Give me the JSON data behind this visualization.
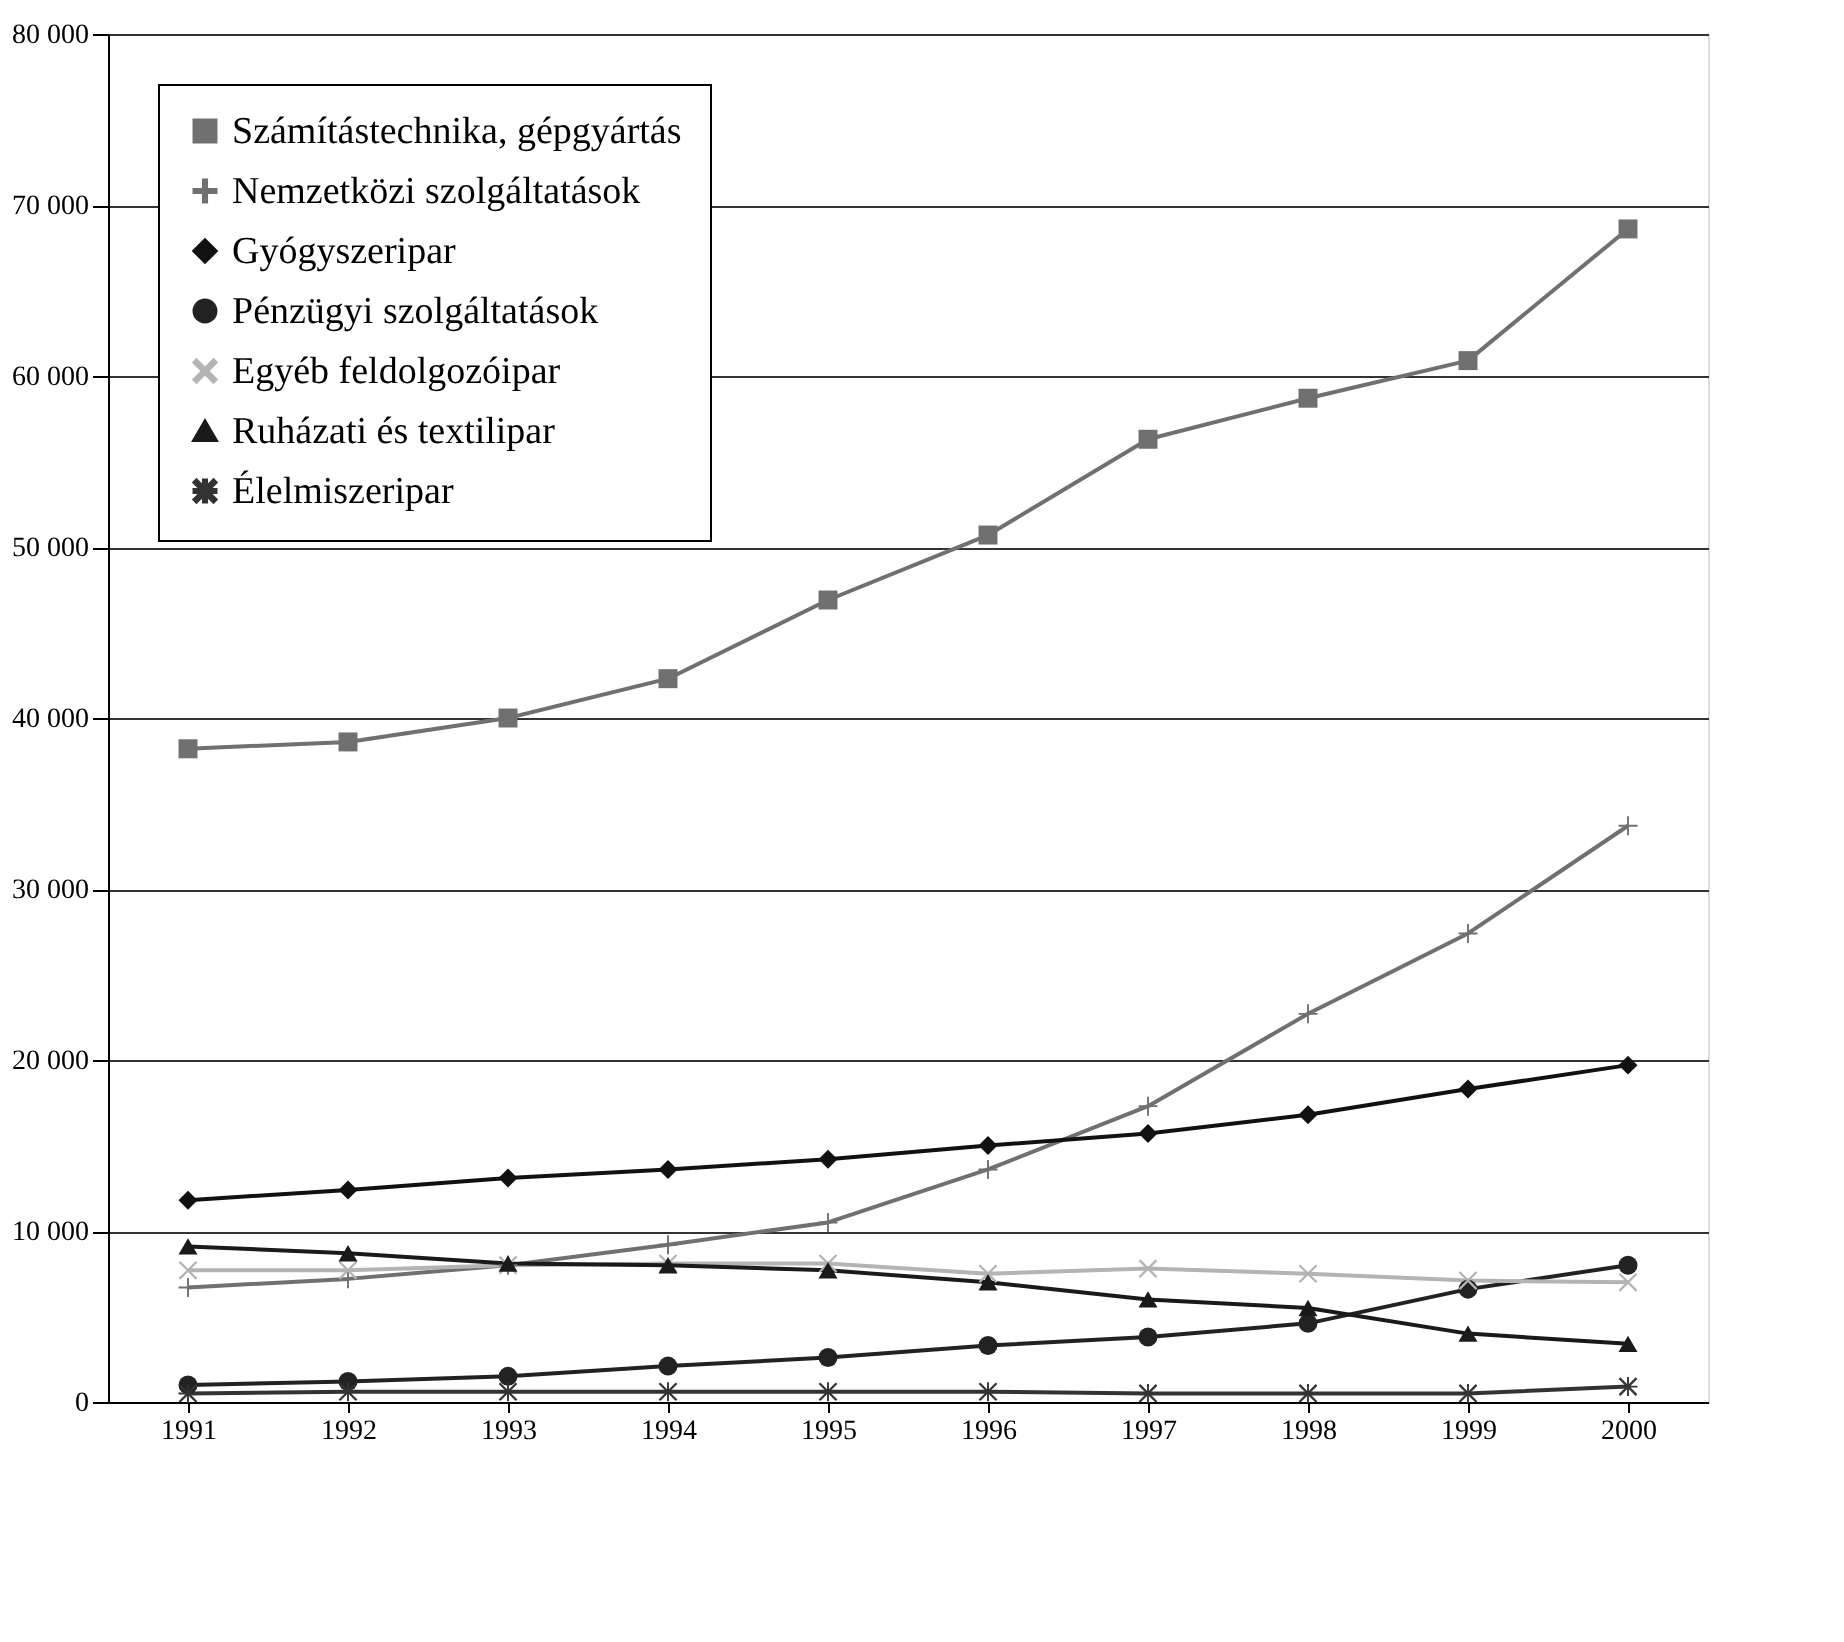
{
  "chart_data": {
    "type": "line",
    "categories": [
      "1991",
      "1992",
      "1993",
      "1994",
      "1995",
      "1996",
      "1997",
      "1998",
      "1999",
      "2000"
    ],
    "ylim": [
      0,
      80000
    ],
    "yticks": [
      0,
      10000,
      20000,
      30000,
      40000,
      50000,
      60000,
      70000,
      80000
    ],
    "grid": "y",
    "legend": "top left",
    "series": [
      {
        "name": "Számítástechnika, gépgyártás",
        "color": "#707070",
        "marker": "square",
        "values": [
          38200,
          38600,
          40000,
          42300,
          46900,
          50700,
          56300,
          58700,
          60900,
          68600
        ]
      },
      {
        "name": "Nemzetközi szolgáltatások",
        "color": "#707070",
        "marker": "plus",
        "values": [
          6700,
          7200,
          8000,
          9200,
          10500,
          13600,
          17300,
          22700,
          27400,
          33700
        ]
      },
      {
        "name": "Gyógyszeripar",
        "color": "#111111",
        "marker": "diamond",
        "values": [
          11800,
          12400,
          13100,
          13600,
          14200,
          15000,
          15700,
          16800,
          18300,
          19700
        ]
      },
      {
        "name": "Pénzügyi szolgáltatások",
        "color": "#222222",
        "marker": "circle",
        "values": [
          1000,
          1200,
          1500,
          2100,
          2600,
          3300,
          3800,
          4600,
          6600,
          8000
        ]
      },
      {
        "name": "Egyéb feldolgozóipar",
        "color": "#b4b4b4",
        "marker": "cross",
        "values": [
          7700,
          7700,
          8000,
          8100,
          8100,
          7500,
          7800,
          7500,
          7100,
          7000
        ]
      },
      {
        "name": "Ruházati és textilipar",
        "color": "#1a1a1a",
        "marker": "triangle",
        "values": [
          9100,
          8700,
          8100,
          8000,
          7700,
          7000,
          6000,
          5500,
          4000,
          3400
        ]
      },
      {
        "name": "Élelmiszeripar",
        "color": "#333333",
        "marker": "star",
        "values": [
          500,
          600,
          600,
          600,
          600,
          600,
          500,
          500,
          500,
          900
        ]
      }
    ]
  }
}
